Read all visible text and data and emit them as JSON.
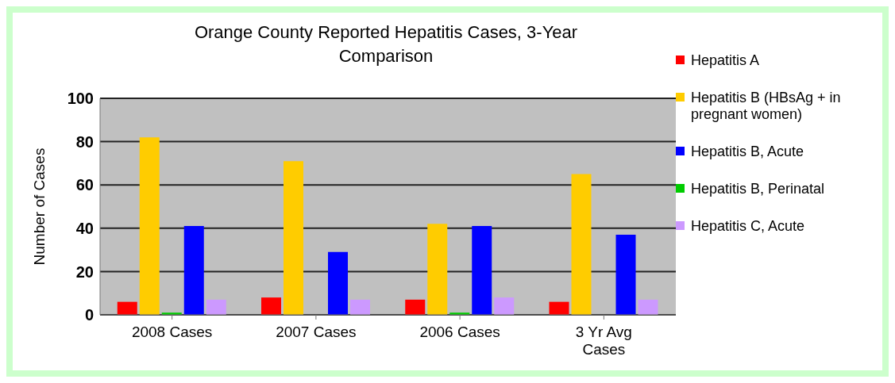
{
  "chart_data": {
    "type": "bar",
    "title": "Orange County Reported Hepatitis Cases, 3-Year Comparison",
    "ylabel": "Number of Cases",
    "categories": [
      "2008 Cases",
      "2007 Cases",
      "2006 Cases",
      "3 Yr Avg Cases"
    ],
    "series": [
      {
        "name": "Hepatitis A",
        "color": "#ff0000",
        "values": [
          6,
          8,
          7,
          6
        ]
      },
      {
        "name": "Hepatitis B (HBsAg + in pregnant women)",
        "color": "#ffcc00",
        "values": [
          82,
          71,
          42,
          65
        ]
      },
      {
        "name": "Hepatitis B, Perinatal",
        "color": "#00cc00",
        "values": [
          1,
          0,
          1,
          0
        ]
      },
      {
        "name": "Hepatitis B, Acute",
        "color": "#0000ff",
        "values": [
          41,
          29,
          41,
          37
        ]
      },
      {
        "name": "Hepatitis C, Acute",
        "color": "#cc99ff",
        "values": [
          7,
          7,
          8,
          7
        ]
      }
    ],
    "ylim": [
      0,
      100
    ],
    "yticks": [
      0,
      20,
      40,
      60,
      80,
      100
    ],
    "grid": "y",
    "legend": "right"
  }
}
